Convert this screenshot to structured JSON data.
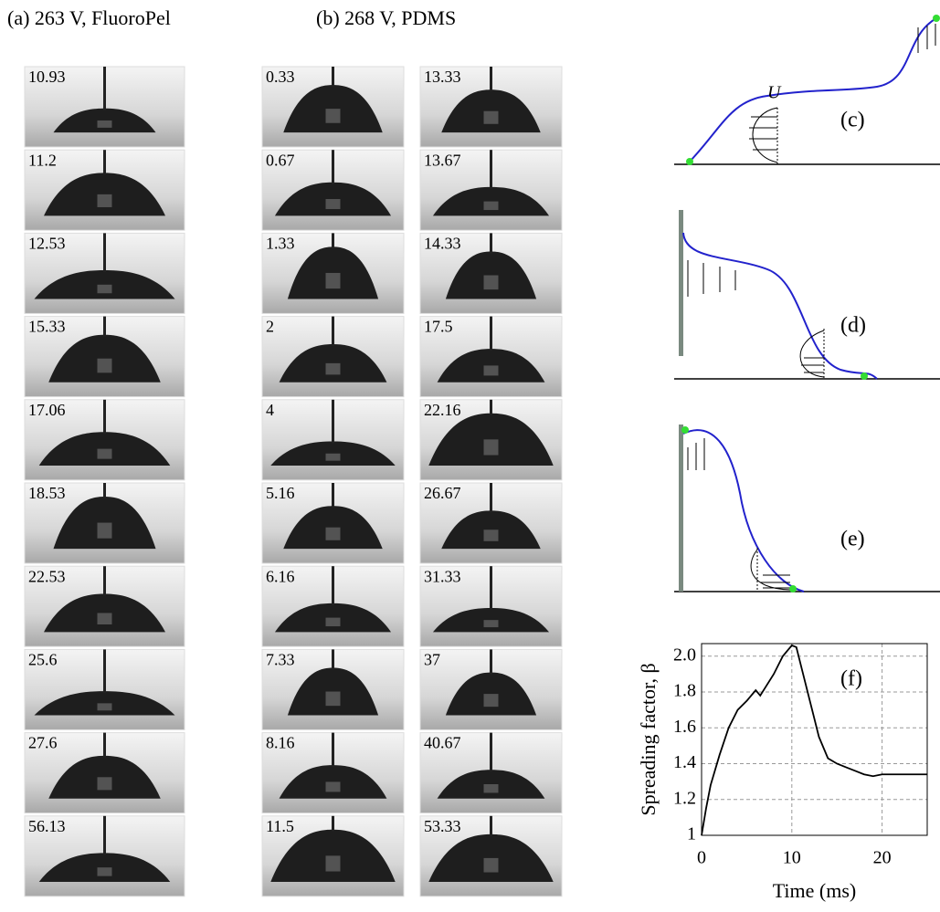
{
  "panels": {
    "a": {
      "label": "(a) 263 V, FluoroPel",
      "frames": [
        "10.93",
        "11.2",
        "12.53",
        "15.33",
        "17.06",
        "18.53",
        "22.53",
        "25.6",
        "27.6",
        "56.13"
      ]
    },
    "b": {
      "label": "(b) 268 V, PDMS",
      "columns": [
        [
          "0.33",
          "0.67",
          "1.33",
          "2",
          "4",
          "5.16",
          "6.16",
          "7.33",
          "8.16",
          "11.5"
        ],
        [
          "13.33",
          "13.67",
          "14.33",
          "17.5",
          "22.16",
          "26.67",
          "31.33",
          "37",
          "40.67",
          "53.33"
        ]
      ]
    },
    "c": {
      "label": "(c)",
      "velocity": "U"
    },
    "d": {
      "label": "(d)"
    },
    "e": {
      "label": "(e)"
    }
  },
  "chart_data": {
    "type": "line",
    "annotation": "(f)",
    "x_label": "Time (ms)",
    "y_label": "Spreading factor, β",
    "x": [
      0,
      0.5,
      1,
      2,
      3,
      4,
      5,
      6,
      6.5,
      7,
      8,
      9,
      10,
      10.5,
      11,
      12,
      13,
      14,
      15,
      16,
      17,
      18,
      19,
      20,
      22,
      25
    ],
    "series": [
      {
        "color": "#000000",
        "values": [
          1,
          1.15,
          1.28,
          1.45,
          1.6,
          1.7,
          1.75,
          1.81,
          1.78,
          1.82,
          1.9,
          2.0,
          2.06,
          2.05,
          1.95,
          1.75,
          1.55,
          1.43,
          1.4,
          1.38,
          1.36,
          1.34,
          1.33,
          1.34,
          1.34,
          1.34
        ]
      }
    ],
    "xlim": [
      0,
      25
    ],
    "ylim": [
      1,
      2.07
    ],
    "xticks": [
      0,
      10,
      20
    ],
    "yticks": [
      1,
      1.2,
      1.4,
      1.6,
      1.8,
      {
        "value": 2,
        "label": "2.0"
      }
    ],
    "grid": true
  }
}
